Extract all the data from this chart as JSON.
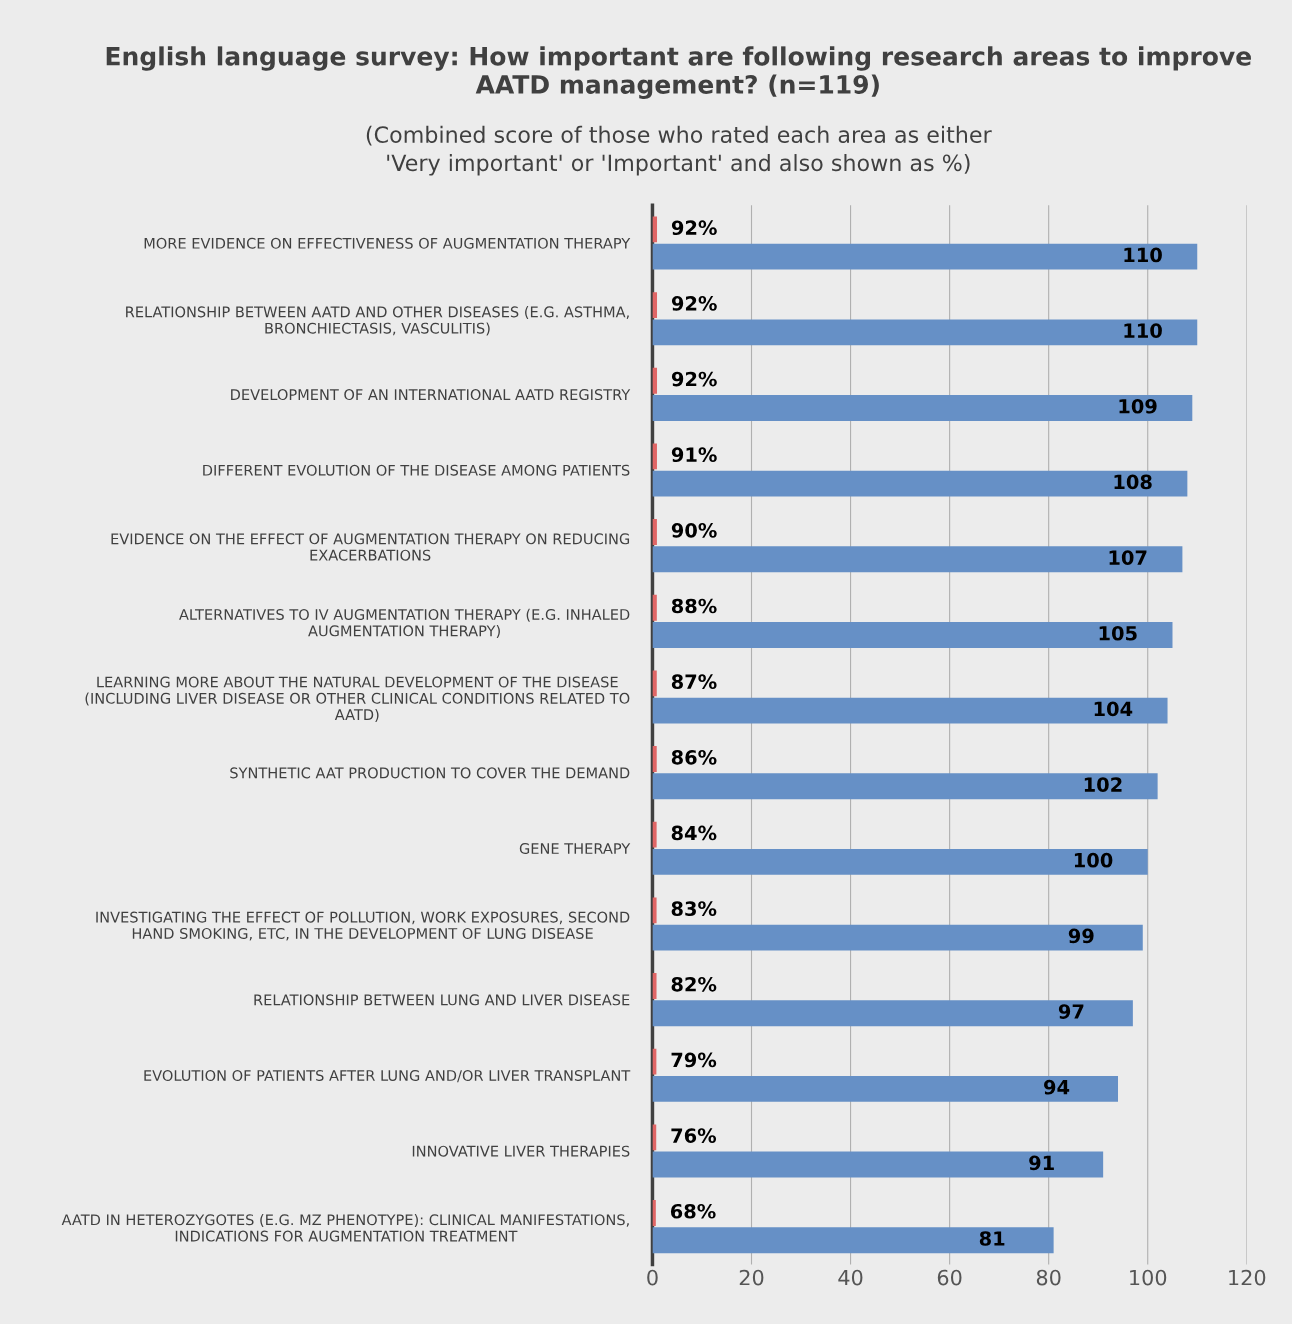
{
  "chart_data": {
    "type": "bar",
    "orientation": "horizontal",
    "title": "English language survey: How important are following research areas to improve AATD management? (n=119)",
    "subtitle": "(Combined score of those who rated each area as either\n'Very important' or 'Important' and also shown as %)",
    "categories": [
      "MORE EVIDENCE ON EFFECTIVENESS OF AUGMENTATION THERAPY",
      "RELATIONSHIP BETWEEN AATD AND OTHER DISEASES (E.G. ASTHMA,\nBRONCHIECTASIS, VASCULITIS)",
      "DEVELOPMENT OF AN INTERNATIONAL AATD REGISTRY",
      "DIFFERENT EVOLUTION OF THE DISEASE AMONG PATIENTS",
      "EVIDENCE ON THE EFFECT OF AUGMENTATION THERAPY ON REDUCING\nEXACERBATIONS",
      "ALTERNATIVES TO IV AUGMENTATION THERAPY (E.G. INHALED\nAUGMENTATION THERAPY)",
      "LEARNING MORE ABOUT THE NATURAL DEVELOPMENT OF THE DISEASE\n(INCLUDING LIVER DISEASE OR OTHER CLINICAL CONDITIONS RELATED TO\nAATD)",
      "SYNTHETIC AAT PRODUCTION TO COVER THE DEMAND",
      "GENE THERAPY",
      "INVESTIGATING THE EFFECT OF POLLUTION, WORK EXPOSURES, SECOND\nHAND SMOKING, ETC, IN THE DEVELOPMENT OF LUNG DISEASE",
      "RELATIONSHIP BETWEEN LUNG AND LIVER DISEASE",
      "EVOLUTION OF PATIENTS AFTER LUNG AND/OR LIVER TRANSPLANT",
      "INNOVATIVE LIVER THERAPIES",
      "AATD IN HETEROZYGOTES (E.G. MZ PHENOTYPE): CLINICAL MANIFESTATIONS,\nINDICATIONS FOR AUGMENTATION TREATMENT"
    ],
    "series": [
      {
        "color": "#e06666",
        "values": [
          0.92,
          0.92,
          0.92,
          0.91,
          0.9,
          0.88,
          0.87,
          0.86,
          0.84,
          0.83,
          0.82,
          0.79,
          0.76,
          0.68
        ],
        "value_labels": [
          "92%",
          "92%",
          "92%",
          "91%",
          "90%",
          "88%",
          "87%",
          "86%",
          "84%",
          "83%",
          "82%",
          "79%",
          "76%",
          "68%"
        ]
      },
      {
        "color": "#6690c6",
        "values": [
          110,
          110,
          109,
          108,
          107,
          105,
          104,
          102,
          100,
          99,
          97,
          94,
          91,
          81
        ],
        "value_labels": [
          "110",
          "110",
          "109",
          "108",
          "107",
          "105",
          "104",
          "102",
          "100",
          "99",
          "97",
          "94",
          "91",
          "81"
        ]
      }
    ],
    "xlim": [
      0,
      120
    ],
    "xticks": [
      0,
      20,
      40,
      60,
      80,
      100,
      120
    ],
    "grid": "x",
    "legend": false
  }
}
